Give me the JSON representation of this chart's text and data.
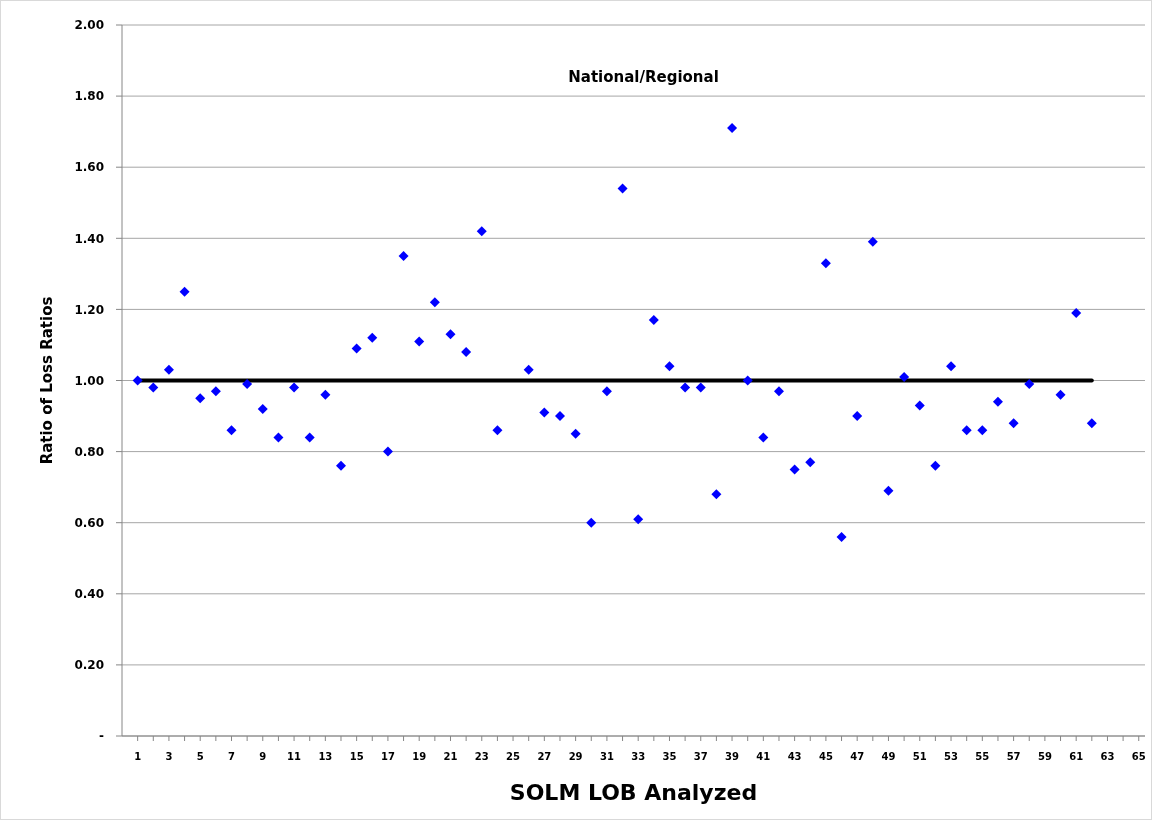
{
  "chart_data": {
    "type": "scatter",
    "title": "National/Regional",
    "xlabel": "SOLM LOB Analyzed",
    "ylabel": "Ratio of Loss Ratios",
    "x": [
      1,
      2,
      3,
      4,
      5,
      6,
      7,
      8,
      9,
      10,
      11,
      12,
      13,
      14,
      15,
      16,
      17,
      18,
      19,
      20,
      21,
      22,
      23,
      24,
      26,
      27,
      28,
      29,
      30,
      31,
      32,
      33,
      34,
      35,
      36,
      37,
      38,
      39,
      40,
      41,
      42,
      43,
      44,
      45,
      46,
      47,
      48,
      49,
      50,
      51,
      52,
      53,
      54,
      55,
      56,
      57,
      58,
      60,
      61,
      62
    ],
    "series": [
      {
        "color": "#0000ff",
        "marker": "diamond",
        "values": [
          1.0,
          0.98,
          1.03,
          1.25,
          0.95,
          0.97,
          0.86,
          0.99,
          0.92,
          0.84,
          0.98,
          0.84,
          0.96,
          0.76,
          1.09,
          1.12,
          0.8,
          1.35,
          1.11,
          1.22,
          1.13,
          1.08,
          1.42,
          0.86,
          1.03,
          0.91,
          0.9,
          0.85,
          0.6,
          0.97,
          1.54,
          0.61,
          1.17,
          1.04,
          0.98,
          0.98,
          0.68,
          1.71,
          1.0,
          0.84,
          0.97,
          0.75,
          0.77,
          1.33,
          0.56,
          0.9,
          1.39,
          0.69,
          1.01,
          0.93,
          0.76,
          1.04,
          0.86,
          0.86,
          0.94,
          0.88,
          0.99,
          0.96,
          1.19,
          0.88
        ]
      },
      {
        "type": "line",
        "color": "#000000",
        "marker": "none",
        "x": [
          1,
          62
        ],
        "values": [
          1.0,
          1.0
        ]
      }
    ],
    "xlim": [
      0,
      65.4
    ],
    "xticks": [
      1,
      {
        "value": 2,
        "label": null
      },
      3,
      {
        "value": 4,
        "label": null
      },
      5,
      {
        "value": 6,
        "label": null
      },
      7,
      {
        "value": 8,
        "label": null
      },
      9,
      {
        "value": 10,
        "label": null
      },
      11,
      {
        "value": 12,
        "label": null
      },
      13,
      {
        "value": 14,
        "label": null
      },
      15,
      {
        "value": 16,
        "label": null
      },
      17,
      {
        "value": 18,
        "label": null
      },
      19,
      {
        "value": 20,
        "label": null
      },
      21,
      {
        "value": 22,
        "label": null
      },
      23,
      {
        "value": 24,
        "label": null
      },
      25,
      {
        "value": 26,
        "label": null
      },
      27,
      {
        "value": 28,
        "label": null
      },
      29,
      {
        "value": 30,
        "label": null
      },
      31,
      {
        "value": 32,
        "label": null
      },
      33,
      {
        "value": 34,
        "label": null
      },
      35,
      {
        "value": 36,
        "label": null
      },
      37,
      {
        "value": 38,
        "label": null
      },
      39,
      {
        "value": 40,
        "label": null
      },
      41,
      {
        "value": 42,
        "label": null
      },
      43,
      {
        "value": 44,
        "label": null
      },
      45,
      {
        "value": 46,
        "label": null
      },
      47,
      {
        "value": 48,
        "label": null
      },
      49,
      {
        "value": 50,
        "label": null
      },
      51,
      {
        "value": 52,
        "label": null
      },
      53,
      {
        "value": 54,
        "label": null
      },
      55,
      {
        "value": 56,
        "label": null
      },
      57,
      {
        "value": 58,
        "label": null
      },
      59,
      {
        "value": 60,
        "label": null
      },
      61,
      {
        "value": 62,
        "label": null
      },
      63,
      {
        "value": 64,
        "label": null
      },
      65
    ],
    "ylim": [
      0,
      2
    ],
    "yticks": [
      {
        "value": 0,
        "label": "-"
      },
      {
        "value": 0.2,
        "label": "0.20"
      },
      {
        "value": 0.4,
        "label": "0.40"
      },
      {
        "value": 0.6,
        "label": "0.60"
      },
      {
        "value": 0.8,
        "label": "0.80"
      },
      {
        "value": 1,
        "label": "1.00"
      },
      {
        "value": 1.2,
        "label": "1.20"
      },
      {
        "value": 1.4,
        "label": "1.40"
      },
      {
        "value": 1.6,
        "label": "1.60"
      },
      {
        "value": 1.8,
        "label": "1.80"
      },
      {
        "value": 2,
        "label": "2.00"
      }
    ],
    "grid": "y"
  }
}
